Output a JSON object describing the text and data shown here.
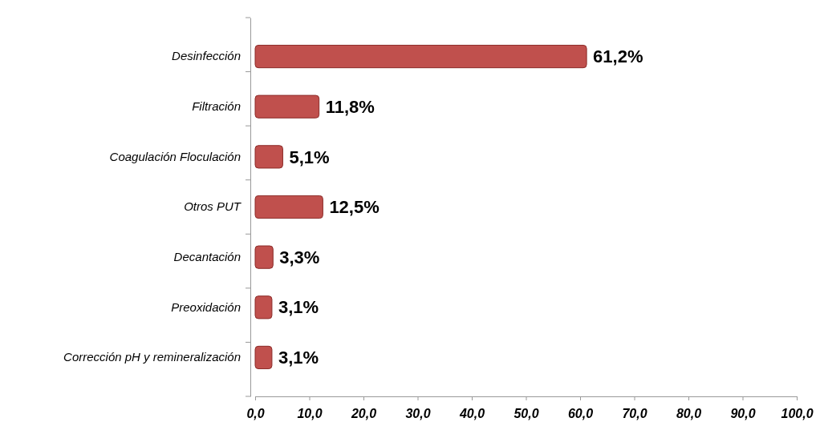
{
  "chart_data": {
    "type": "bar",
    "orientation": "horizontal",
    "categories": [
      "Desinfección",
      "Filtración",
      "Coagulación Floculación",
      "Otros PUT",
      "Decantación",
      "Preoxidación",
      "Corrección pH y remineralización"
    ],
    "values": [
      61.2,
      11.8,
      5.1,
      12.5,
      3.3,
      3.1,
      3.1
    ],
    "value_labels": [
      "61,2%",
      "11,8%",
      "5,1%",
      "12,5%",
      "3,3%",
      "3,1%",
      "3,1%"
    ],
    "color": "#c0504d",
    "xlim": [
      0,
      100
    ],
    "xticks": [
      {
        "value": 0,
        "label": "0,0"
      },
      {
        "value": 10,
        "label": "10,0"
      },
      {
        "value": 20,
        "label": "20,0"
      },
      {
        "value": 30,
        "label": "30,0"
      },
      {
        "value": 40,
        "label": "40,0"
      },
      {
        "value": 50,
        "label": "50,0"
      },
      {
        "value": 60,
        "label": "60,0"
      },
      {
        "value": 70,
        "label": "70,0"
      },
      {
        "value": 80,
        "label": "80,0"
      },
      {
        "value": 90,
        "label": "90,0"
      },
      {
        "value": 100,
        "label": "100,0"
      }
    ],
    "grid": false
  }
}
